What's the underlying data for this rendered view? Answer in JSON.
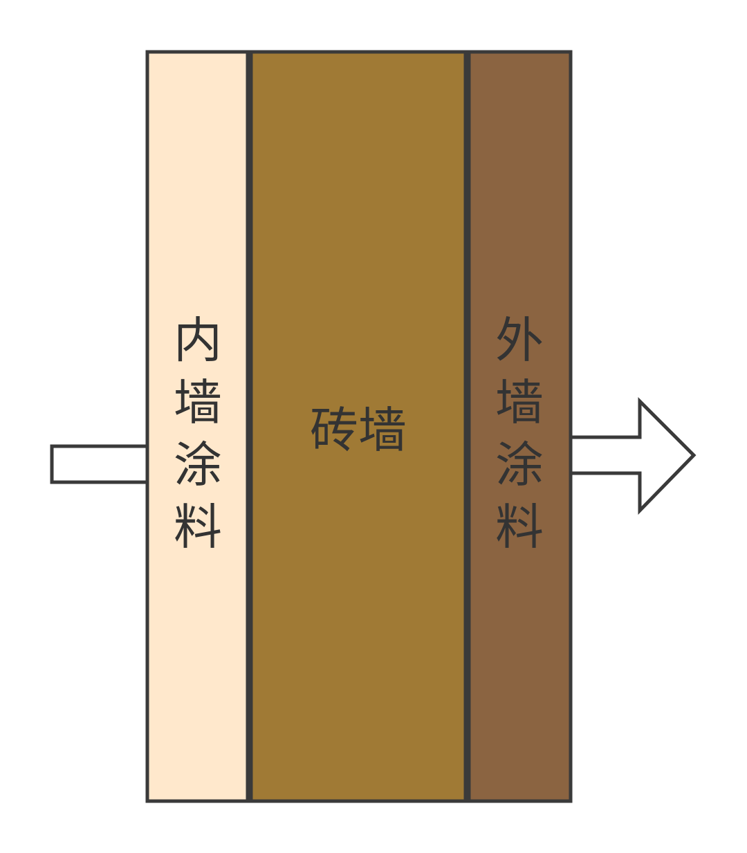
{
  "layers": [
    {
      "id": "inner",
      "label": "内墙涂料",
      "chars": [
        "内",
        "墙",
        "涂",
        "料"
      ],
      "fill": "#FFE8CC"
    },
    {
      "id": "brick",
      "label": "砖墙",
      "fill": "#A07A35"
    },
    {
      "id": "outer",
      "label": "外墙涂料",
      "chars": [
        "外",
        "墙",
        "涂",
        "料"
      ],
      "fill": "#8B6441"
    }
  ],
  "stroke_color": "#3A3A3A",
  "arrows": {
    "in": {
      "fill": "#FFFFFF"
    },
    "out": {
      "fill": "#FFFFFF"
    }
  }
}
